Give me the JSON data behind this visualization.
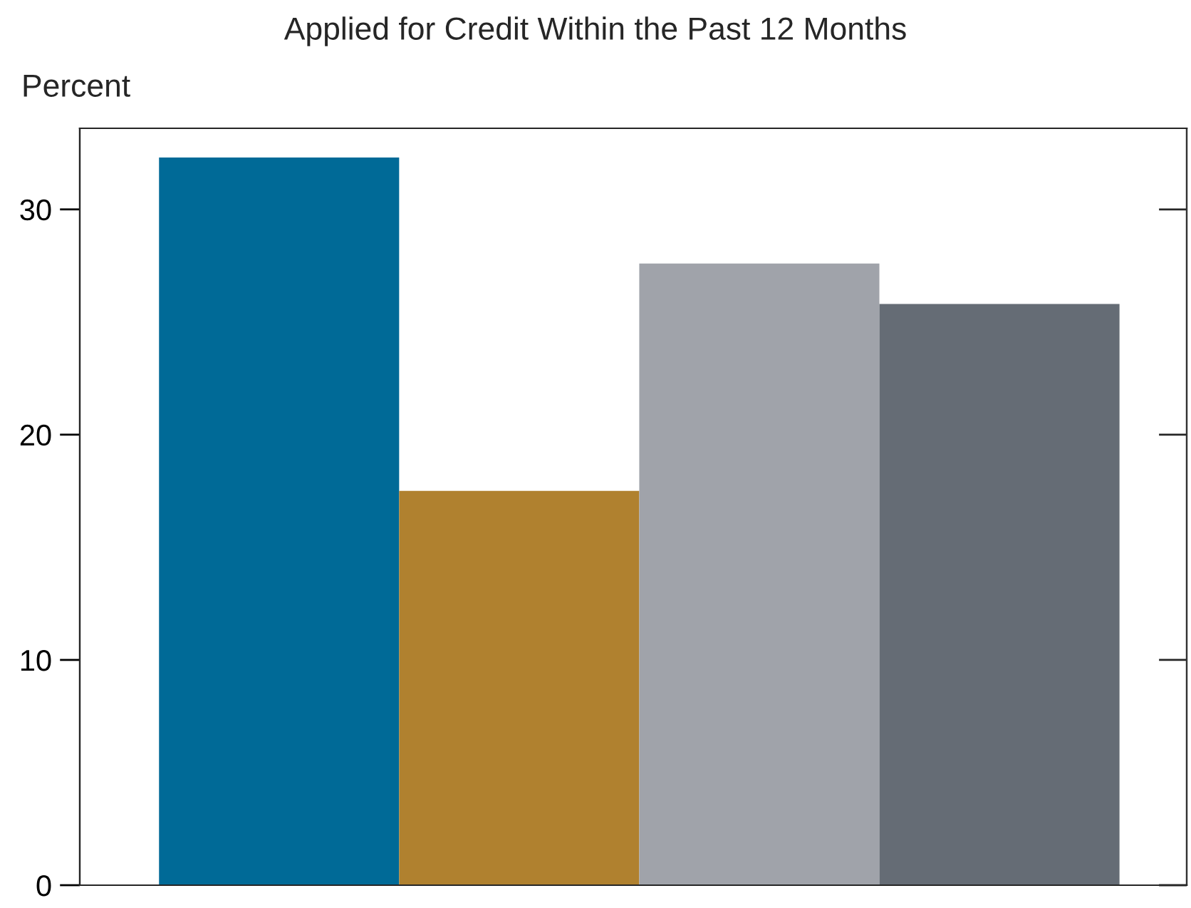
{
  "chart_data": {
    "type": "bar",
    "title": "Applied for Credit Within the Past 12 Months",
    "ylabel": "Percent",
    "categories": [
      null,
      null,
      null,
      null
    ],
    "values": [
      32.3,
      17.5,
      27.6,
      25.8
    ],
    "colors": [
      "#006a97",
      "#b0812f",
      "#a0a3aa",
      "#656c75"
    ],
    "ylim": [
      0,
      33.6
    ],
    "yticks": [
      0,
      10,
      20,
      30
    ],
    "grid": false
  }
}
